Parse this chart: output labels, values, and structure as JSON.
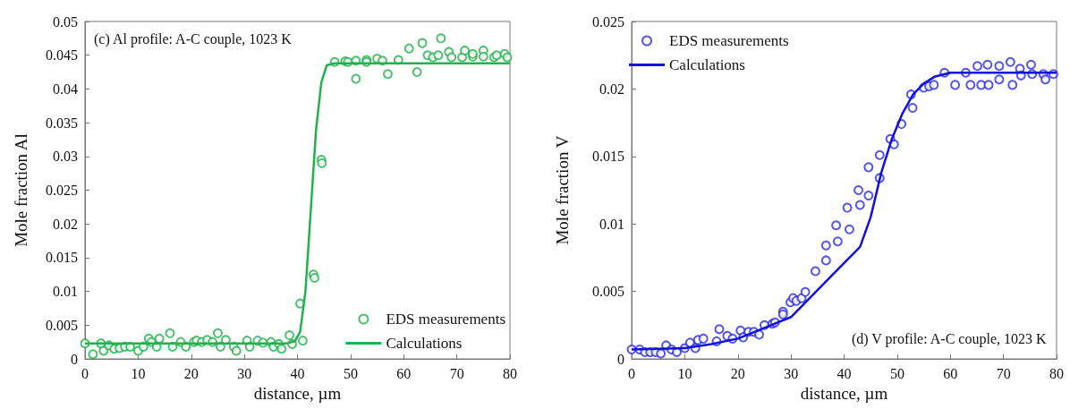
{
  "chart_data": [
    {
      "type": "scatter",
      "title": "(c) Al profile: A-C couple, 1023 K",
      "xlabel": "distance, µm",
      "ylabel": "Mole fraction Al",
      "xlim": [
        0,
        80
      ],
      "xticks": [
        0,
        10,
        20,
        30,
        40,
        50,
        60,
        70,
        80
      ],
      "ylim": [
        0,
        0.05
      ],
      "yticks": [
        0,
        0.005,
        0.01,
        0.015,
        0.02,
        0.025,
        0.03,
        0.035,
        0.04,
        0.045,
        0.05
      ],
      "grid": false,
      "legend": "bottom right",
      "series": [
        {
          "name": "EDS measurements",
          "type": "scatter",
          "marker": "circle",
          "color": "#22b24c",
          "x": [
            0,
            1.5,
            3,
            3.5,
            4.5,
            5.5,
            6.5,
            7.5,
            8.5,
            10,
            11,
            12,
            12.5,
            13.5,
            14,
            16,
            16.5,
            18,
            19,
            20.5,
            21,
            22,
            23,
            24,
            25,
            25.5,
            26.5,
            28,
            28.5,
            30.5,
            31,
            32.5,
            33.5,
            35,
            35.5,
            36.5,
            37,
            38.5,
            39,
            40.5,
            41,
            43,
            43.2,
            44.5,
            44.6,
            47,
            49,
            49.5,
            51,
            51,
            53,
            53,
            55,
            56,
            57,
            59,
            61,
            62.5,
            63.5,
            64.5,
            65.5,
            66.5,
            67,
            68.5,
            69,
            71,
            71.5,
            73,
            73,
            75,
            75,
            77,
            77.5,
            79,
            79.5
          ],
          "values": [
            0.0023,
            0.0007,
            0.0023,
            0.0012,
            0.002,
            0.0015,
            0.0016,
            0.0018,
            0.0018,
            0.0012,
            0.0018,
            0.003,
            0.0025,
            0.0018,
            0.003,
            0.0038,
            0.0018,
            0.0025,
            0.0018,
            0.0025,
            0.0027,
            0.0025,
            0.0028,
            0.0025,
            0.0038,
            0.0018,
            0.0028,
            0.0018,
            0.0012,
            0.0027,
            0.0018,
            0.0027,
            0.0024,
            0.0025,
            0.0018,
            0.0022,
            0.0015,
            0.0035,
            0.0022,
            0.0082,
            0.0027,
            0.0125,
            0.012,
            0.0295,
            0.029,
            0.044,
            0.0441,
            0.044,
            0.0442,
            0.0415,
            0.0443,
            0.044,
            0.0445,
            0.0442,
            0.0422,
            0.0443,
            0.046,
            0.0425,
            0.0468,
            0.045,
            0.0447,
            0.045,
            0.0475,
            0.0455,
            0.0447,
            0.0447,
            0.0457,
            0.0448,
            0.0452,
            0.0457,
            0.0448,
            0.0447,
            0.045,
            0.0452,
            0.0447
          ]
        },
        {
          "name": "Calculations",
          "type": "line",
          "marker": "none",
          "color": "#22b24c",
          "x": [
            0,
            38,
            39.5,
            40.5,
            41.5,
            42.5,
            43.5,
            44.5,
            45.5,
            47,
            80
          ],
          "values": [
            0.0023,
            0.0023,
            0.0026,
            0.004,
            0.01,
            0.022,
            0.034,
            0.041,
            0.0435,
            0.0438,
            0.0438
          ]
        }
      ]
    },
    {
      "type": "scatter",
      "title": "(d) V profile: A-C couple, 1023 K",
      "xlabel": "distance, µm",
      "ylabel": "Mole fraction V",
      "xlim": [
        0,
        80
      ],
      "xticks": [
        0,
        10,
        20,
        30,
        40,
        50,
        60,
        70,
        80
      ],
      "ylim": [
        0,
        0.025
      ],
      "yticks": [
        0,
        0.005,
        0.01,
        0.015,
        0.02,
        0.025
      ],
      "grid": false,
      "legend": "top left",
      "series": [
        {
          "name": "EDS measurements",
          "type": "scatter",
          "marker": "circle",
          "color": "#2a2ae6",
          "x": [
            0,
            1.5,
            2.5,
            3.5,
            4.5,
            5.5,
            6.5,
            7.5,
            8.5,
            10,
            11,
            12,
            12.5,
            13.5,
            16,
            16.5,
            18,
            19,
            20.5,
            21,
            22,
            23,
            24,
            25,
            26.5,
            27,
            28.5,
            28.5,
            29.9,
            30.4,
            31,
            32,
            32.7,
            34.6,
            36.6,
            36.6,
            38.5,
            38.8,
            40.6,
            41,
            42.7,
            43,
            44.6,
            44.6,
            46.7,
            46.7,
            48.7,
            49.4,
            50.8,
            52.6,
            52.9,
            55,
            56,
            56.9,
            58.9,
            60.9,
            62.9,
            63.8,
            65.1,
            65.8,
            67,
            67.2,
            69.2,
            69.2,
            71.3,
            71.7,
            73.1,
            73.3,
            75.2,
            75.4,
            77.5,
            77.9,
            79.4
          ],
          "values": [
            0.0007,
            0.0007,
            0.0005,
            0.0005,
            0.0005,
            0.0004,
            0.001,
            0.0007,
            0.0005,
            0.0008,
            0.0012,
            0.0008,
            0.0014,
            0.0015,
            0.0013,
            0.0022,
            0.0017,
            0.0015,
            0.0021,
            0.0016,
            0.002,
            0.002,
            0.0018,
            0.0025,
            0.0026,
            0.0027,
            0.0035,
            0.0033,
            0.0042,
            0.0045,
            0.0043,
            0.0045,
            0.00495,
            0.0065,
            0.0084,
            0.0073,
            0.0099,
            0.0087,
            0.0112,
            0.0096,
            0.0125,
            0.0114,
            0.0142,
            0.0121,
            0.0151,
            0.0134,
            0.0163,
            0.0159,
            0.0174,
            0.0196,
            0.0186,
            0.0201,
            0.0202,
            0.0203,
            0.0212,
            0.0203,
            0.0212,
            0.0203,
            0.0217,
            0.0203,
            0.0218,
            0.0203,
            0.0217,
            0.0207,
            0.022,
            0.0203,
            0.0215,
            0.021,
            0.0218,
            0.0211,
            0.0211,
            0.0207,
            0.0211
          ]
        },
        {
          "name": "Calculations",
          "type": "line",
          "marker": "none",
          "color": "#1010e0",
          "x": [
            0,
            10,
            15,
            20,
            25,
            30,
            35,
            40,
            43,
            45,
            47,
            49,
            51,
            53,
            55,
            57,
            60,
            80
          ],
          "values": [
            0.0007,
            0.0008,
            0.0011,
            0.0015,
            0.0023,
            0.0031,
            0.0051,
            0.0071,
            0.0083,
            0.0105,
            0.0138,
            0.0163,
            0.0182,
            0.0196,
            0.0204,
            0.0209,
            0.0212,
            0.0212
          ]
        }
      ]
    }
  ]
}
